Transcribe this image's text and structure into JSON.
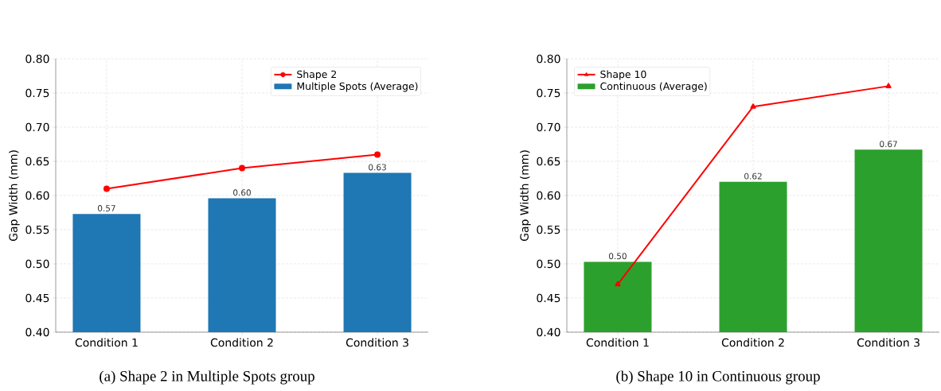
{
  "chart_data": [
    {
      "type": "bar",
      "title": "(a) Shape 2 in Multiple Spots group",
      "ylabel": "Gap Width (mm)",
      "categories": [
        "Condition 1",
        "Condition 2",
        "Condition 3"
      ],
      "series": [
        {
          "name": "Shape 2",
          "type": "line",
          "color": "#ff0000",
          "marker": "circle",
          "values": [
            0.61,
            0.64,
            0.66
          ]
        },
        {
          "name": "Multiple Spots (Average)",
          "type": "bar",
          "color": "#1f77b4",
          "values": [
            0.573,
            0.596,
            0.633
          ],
          "value_labels": [
            "0.57",
            "0.60",
            "0.63"
          ]
        }
      ],
      "ylim": [
        0.4,
        0.8
      ],
      "yticks": [
        {
          "value": 0.4,
          "label": "0.40"
        },
        {
          "value": 0.45,
          "label": "0.45"
        },
        {
          "value": 0.5,
          "label": "0.50"
        },
        {
          "value": 0.55,
          "label": "0.55"
        },
        {
          "value": 0.6,
          "label": "0.60"
        },
        {
          "value": 0.65,
          "label": "0.65"
        },
        {
          "value": 0.7,
          "label": "0.70"
        },
        {
          "value": 0.75,
          "label": "0.75"
        },
        {
          "value": 0.8,
          "label": "0.80"
        }
      ],
      "grid": true,
      "legend": "top right"
    },
    {
      "type": "bar",
      "title": "(b) Shape 10 in Continuous group",
      "ylabel": "Gap Width (mm)",
      "categories": [
        "Condition 1",
        "Condition 2",
        "Condition 3"
      ],
      "series": [
        {
          "name": "Shape 10",
          "type": "line",
          "color": "#ff0000",
          "marker": "triangle",
          "values": [
            0.47,
            0.73,
            0.76
          ]
        },
        {
          "name": "Continuous (Average)",
          "type": "bar",
          "color": "#2ca02c",
          "values": [
            0.503,
            0.62,
            0.667
          ],
          "value_labels": [
            "0.50",
            "0.62",
            "0.67"
          ]
        }
      ],
      "ylim": [
        0.4,
        0.8
      ],
      "yticks": [
        {
          "value": 0.4,
          "label": "0.40"
        },
        {
          "value": 0.45,
          "label": "0.45"
        },
        {
          "value": 0.5,
          "label": "0.50"
        },
        {
          "value": 0.55,
          "label": "0.55"
        },
        {
          "value": 0.6,
          "label": "0.60"
        },
        {
          "value": 0.65,
          "label": "0.65"
        },
        {
          "value": 0.7,
          "label": "0.70"
        },
        {
          "value": 0.75,
          "label": "0.75"
        },
        {
          "value": 0.8,
          "label": "0.80"
        }
      ],
      "grid": true,
      "legend": "top left"
    }
  ]
}
